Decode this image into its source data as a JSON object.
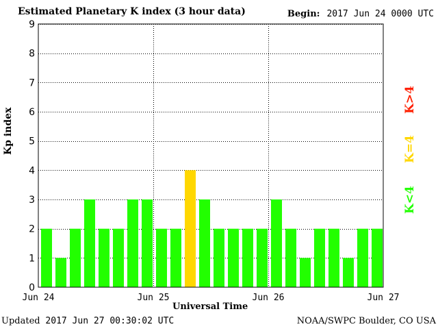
{
  "header": {
    "title": "Estimated Planetary K index (3 hour data)",
    "begin_label": "Begin:",
    "begin_value": "2017 Jun 24 0000 UTC"
  },
  "footer": {
    "updated_label": "Updated",
    "updated_value": "2017 Jun 27 00:30:02 UTC",
    "credit": "NOAA/SWPC Boulder, CO USA"
  },
  "legend": {
    "low": "K<4",
    "mid": "K=4",
    "high": "K>4"
  },
  "colors": {
    "low": "#22ff00",
    "mid": "#ffd700",
    "high": "#ff2000",
    "grid": "#000000"
  },
  "chart_data": {
    "type": "bar",
    "title": "Estimated Planetary K index (3 hour data)",
    "xlabel": "Universal Time",
    "ylabel": "Kp index",
    "ylim": [
      0,
      9
    ],
    "yticks": [
      "0",
      "1",
      "2",
      "3",
      "4",
      "5",
      "6",
      "7",
      "8",
      "9"
    ],
    "xticks": [
      "Jun 24",
      "Jun 25",
      "Jun 26",
      "Jun 27"
    ],
    "grid": "dotted",
    "values": [
      2,
      1,
      2,
      3,
      2,
      2,
      3,
      3,
      2,
      2,
      4,
      3,
      2,
      2,
      2,
      2,
      3,
      2,
      1,
      2,
      2,
      1,
      2,
      2
    ]
  }
}
